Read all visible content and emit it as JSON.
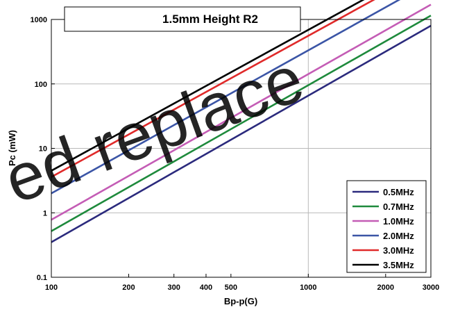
{
  "chart_data": {
    "type": "line",
    "title": "1.5mm Height R2",
    "xlabel": "Bp-p(G)",
    "ylabel": "Pc (mW)",
    "x_scale": "log",
    "y_scale": "log",
    "xlim": [
      100,
      3000
    ],
    "ylim": [
      0.1,
      1000
    ],
    "x_ticks": [
      "100",
      "200",
      "300",
      "400",
      "500",
      "1000",
      "2000",
      "3000"
    ],
    "y_ticks": [
      "0.1",
      "1",
      "10",
      "100",
      "1000"
    ],
    "grid": true,
    "legend_position": "bottom-right",
    "watermark": "ed replace",
    "series": [
      {
        "name": "0.5MHz",
        "color": "#2b2a7d",
        "x": [
          100,
          3000
        ],
        "y": [
          0.35,
          800
        ]
      },
      {
        "name": "0.7MHz",
        "color": "#1e8a3c",
        "x": [
          100,
          3000
        ],
        "y": [
          0.52,
          1150
        ]
      },
      {
        "name": "1.0MHz",
        "color": "#c45cb5",
        "x": [
          100,
          3000
        ],
        "y": [
          0.78,
          1700
        ]
      },
      {
        "name": "2.0MHz",
        "color": "#3b55a6",
        "x": [
          100,
          3000
        ],
        "y": [
          2.0,
          3800
        ]
      },
      {
        "name": "3.0MHz",
        "color": "#e02a2a",
        "x": [
          100,
          3000
        ],
        "y": [
          3.6,
          6200
        ]
      },
      {
        "name": "3.5MHz",
        "color": "#000000",
        "x": [
          100,
          3000
        ],
        "y": [
          4.5,
          7600
        ]
      }
    ]
  }
}
